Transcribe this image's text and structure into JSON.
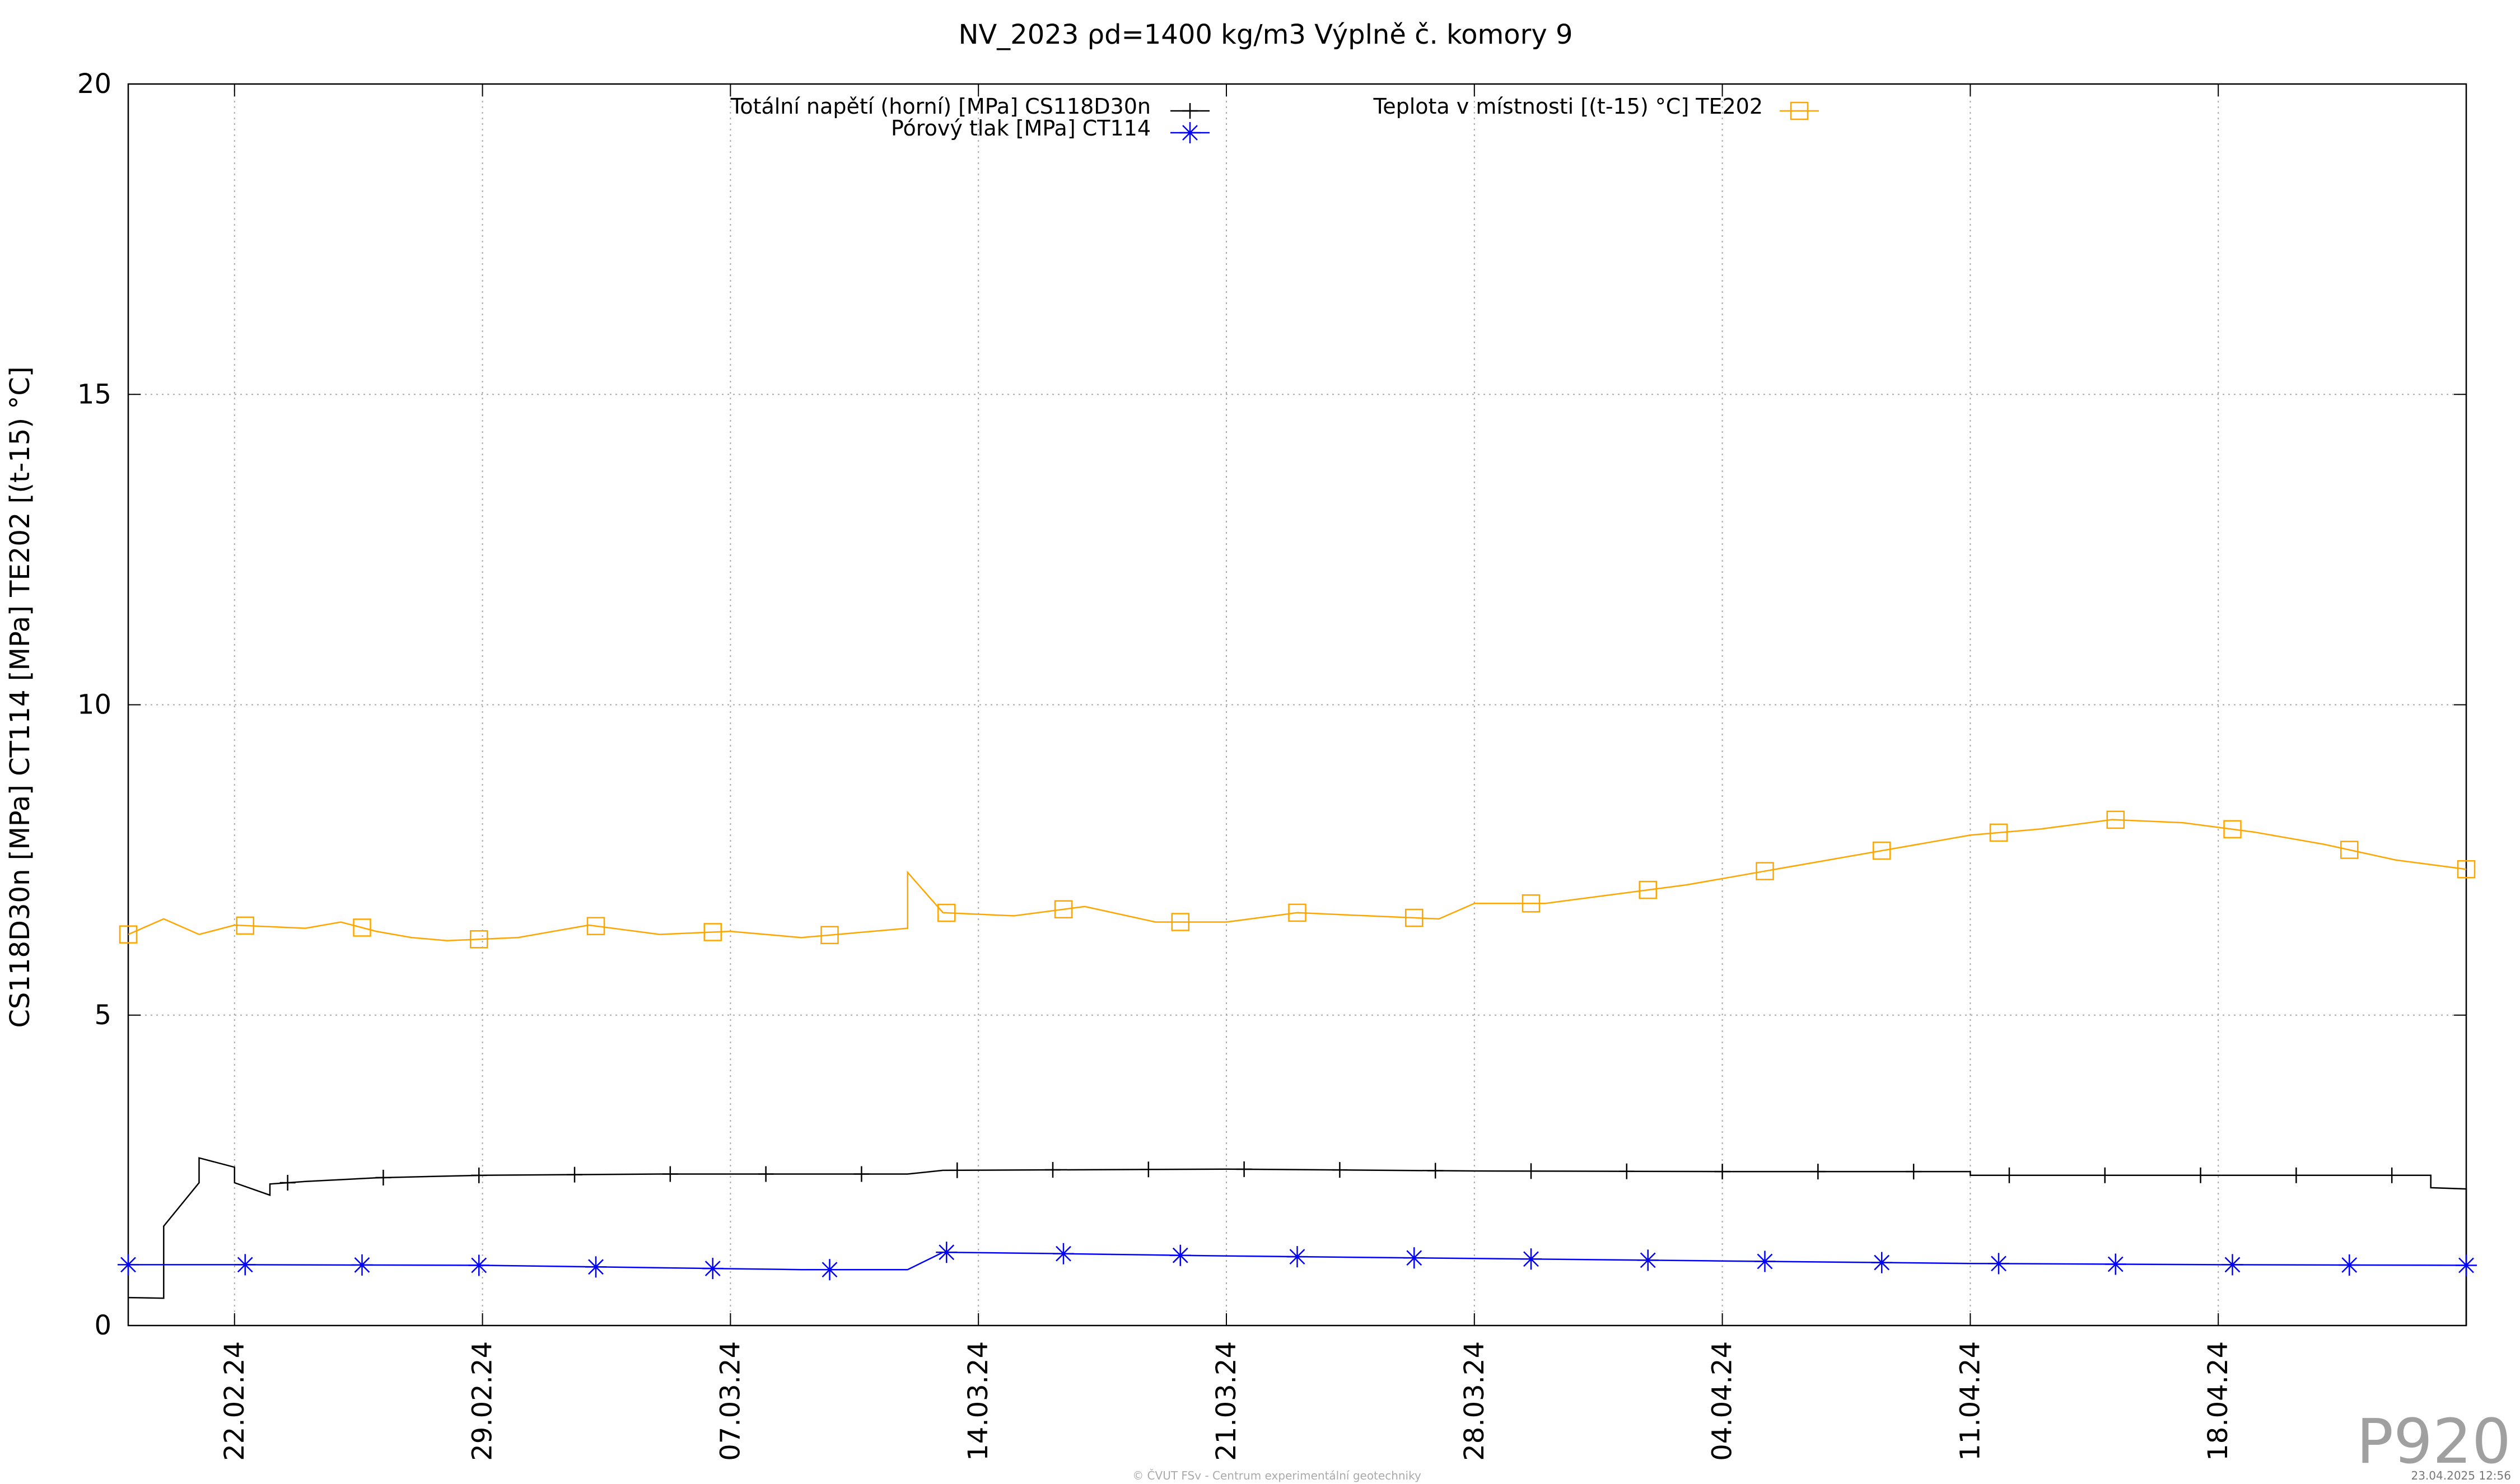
{
  "chart_data": {
    "type": "line",
    "title": "NV_2023 ρd=1400 kg/m3 Výplně č. komory 9",
    "xlabel": "",
    "ylabel": "CS118D30n [MPa] CT114 [MPa] TE202 [(t-15) °C]",
    "ylim": [
      0,
      20
    ],
    "yticks": [
      "0",
      "5",
      "10",
      "15",
      "20"
    ],
    "xlim": [
      "2024-02-19",
      "2024-04-25"
    ],
    "xticks": [
      "22.02.24",
      "29.02.24",
      "07.03.24",
      "14.03.24",
      "21.03.24",
      "28.03.24",
      "04.04.24",
      "11.04.24",
      "18.04.24"
    ],
    "grid": true,
    "legend": "top",
    "series": [
      {
        "name": "Totální napětí (horní) [MPa] CS118D30n",
        "color": "#000000",
        "marker": "plus",
        "points": [
          [
            "2024-02-19",
            0.45
          ],
          [
            "2024-02-20",
            0.44
          ],
          [
            "2024-02-20",
            1.6
          ],
          [
            "2024-02-21",
            2.3
          ],
          [
            "2024-02-21",
            2.7
          ],
          [
            "2024-02-22",
            2.55
          ],
          [
            "2024-02-22",
            2.3
          ],
          [
            "2024-02-23",
            2.1
          ],
          [
            "2024-02-23",
            2.28
          ],
          [
            "2024-02-24",
            2.32
          ],
          [
            "2024-02-26",
            2.38
          ],
          [
            "2024-02-29",
            2.42
          ],
          [
            "2024-03-05",
            2.44
          ],
          [
            "2024-03-12",
            2.44
          ],
          [
            "2024-03-13",
            2.5
          ],
          [
            "2024-03-21",
            2.52
          ],
          [
            "2024-03-28",
            2.49
          ],
          [
            "2024-04-04",
            2.48
          ],
          [
            "2024-04-11",
            2.48
          ],
          [
            "2024-04-11",
            2.42
          ],
          [
            "2024-04-18",
            2.42
          ],
          [
            "2024-04-24",
            2.42
          ],
          [
            "2024-04-24",
            2.22
          ],
          [
            "2024-04-25",
            2.2
          ],
          [
            "2024-04-25",
            0.0
          ]
        ]
      },
      {
        "name": "Pórový tlak [MPa] CT114",
        "color": "#0000ff",
        "marker": "asterisk",
        "points": [
          [
            "2024-02-19",
            0.98
          ],
          [
            "2024-02-22",
            0.98
          ],
          [
            "2024-02-29",
            0.97
          ],
          [
            "2024-03-05",
            0.93
          ],
          [
            "2024-03-09",
            0.9
          ],
          [
            "2024-03-12",
            0.9
          ],
          [
            "2024-03-13",
            1.18
          ],
          [
            "2024-03-16",
            1.16
          ],
          [
            "2024-03-21",
            1.12
          ],
          [
            "2024-03-28",
            1.08
          ],
          [
            "2024-04-04",
            1.04
          ],
          [
            "2024-04-11",
            1.0
          ],
          [
            "2024-04-18",
            0.98
          ],
          [
            "2024-04-25",
            0.97
          ]
        ]
      },
      {
        "name": "Teplota v místnosti [(t-15) °C] TE202",
        "color": "#ffa500",
        "marker": "square",
        "points": [
          [
            "2024-02-19",
            6.3
          ],
          [
            "2024-02-20",
            6.55
          ],
          [
            "2024-02-21",
            6.3
          ],
          [
            "2024-02-22",
            6.45
          ],
          [
            "2024-02-24",
            6.4
          ],
          [
            "2024-02-25",
            6.5
          ],
          [
            "2024-02-26",
            6.35
          ],
          [
            "2024-02-27",
            6.25
          ],
          [
            "2024-02-28",
            6.2
          ],
          [
            "2024-03-01",
            6.25
          ],
          [
            "2024-03-03",
            6.45
          ],
          [
            "2024-03-05",
            6.3
          ],
          [
            "2024-03-07",
            6.35
          ],
          [
            "2024-03-09",
            6.25
          ],
          [
            "2024-03-11",
            6.35
          ],
          [
            "2024-03-12",
            6.4
          ],
          [
            "2024-03-12",
            7.3
          ],
          [
            "2024-03-13",
            6.65
          ],
          [
            "2024-03-15",
            6.6
          ],
          [
            "2024-03-17",
            6.75
          ],
          [
            "2024-03-19",
            6.5
          ],
          [
            "2024-03-21",
            6.5
          ],
          [
            "2024-03-23",
            6.65
          ],
          [
            "2024-03-25",
            6.6
          ],
          [
            "2024-03-27",
            6.55
          ],
          [
            "2024-03-28",
            6.8
          ],
          [
            "2024-03-30",
            6.8
          ],
          [
            "2024-04-01",
            6.95
          ],
          [
            "2024-04-03",
            7.1
          ],
          [
            "2024-04-05",
            7.3
          ],
          [
            "2024-04-07",
            7.5
          ],
          [
            "2024-04-09",
            7.7
          ],
          [
            "2024-04-11",
            7.9
          ],
          [
            "2024-04-13",
            8.0
          ],
          [
            "2024-04-15",
            8.15
          ],
          [
            "2024-04-17",
            8.1
          ],
          [
            "2024-04-19",
            7.95
          ],
          [
            "2024-04-21",
            7.75
          ],
          [
            "2024-04-23",
            7.5
          ],
          [
            "2024-04-25",
            7.35
          ]
        ]
      }
    ]
  },
  "corner_label": "P920",
  "footer": "© ČVUT FSv - Centrum experimentální geotechniky",
  "timestamp": "23.04.2025 12:56"
}
